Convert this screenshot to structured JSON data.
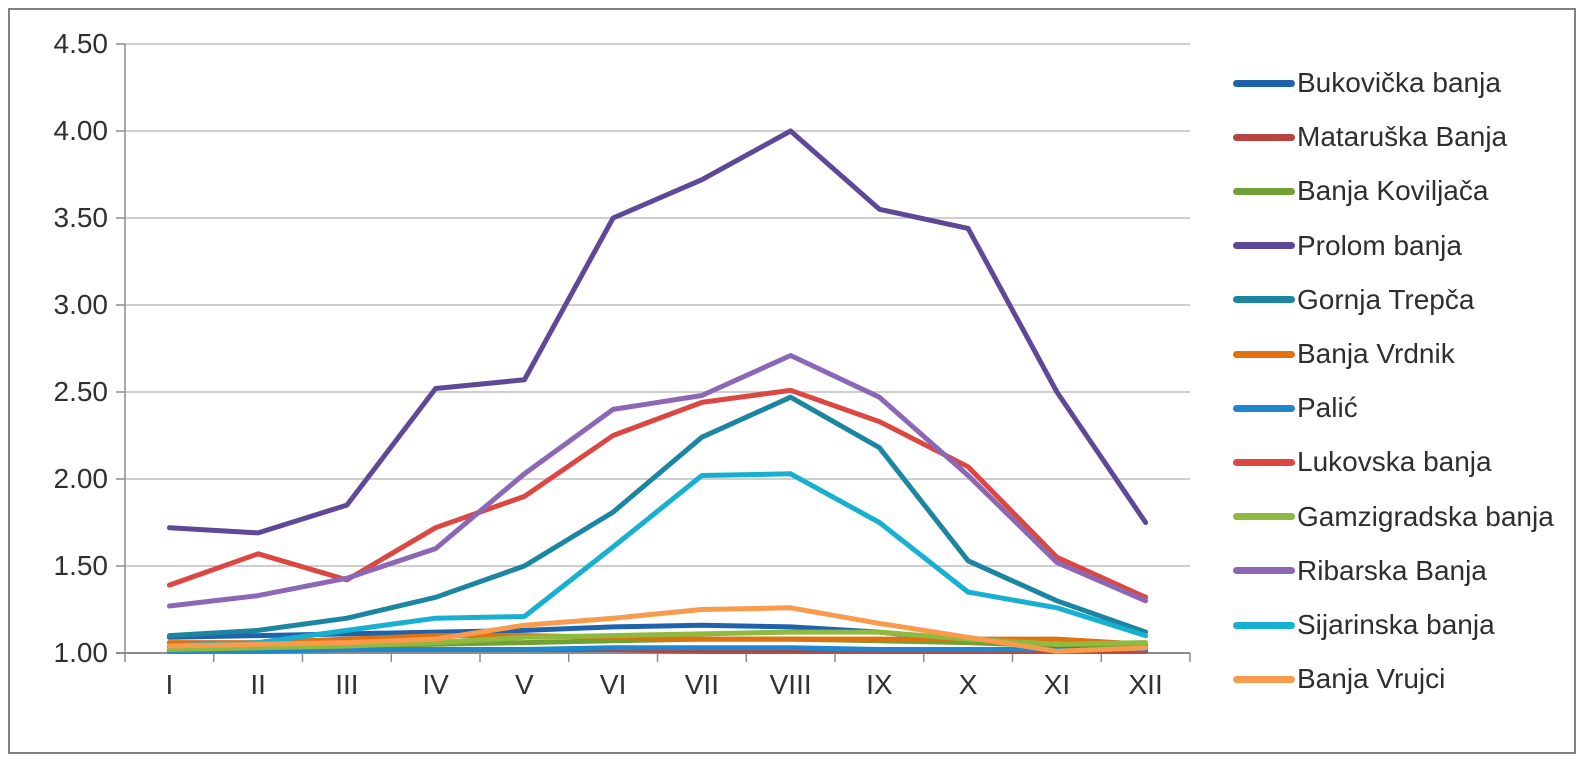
{
  "chart_data": {
    "type": "line",
    "categories": [
      "I",
      "II",
      "III",
      "IV",
      "V",
      "VI",
      "VII",
      "VIII",
      "IX",
      "X",
      "XI",
      "XII"
    ],
    "xlabel": "",
    "ylabel": "",
    "y_axis": {
      "min": 1.0,
      "max": 4.5,
      "step": 0.5,
      "tick_labels_top_to_bottom": [
        "4.50",
        "4.00",
        "3.50",
        "3.00",
        "2.50",
        "2.00",
        "1.50",
        "1.00"
      ]
    },
    "grid": "horizontal",
    "legend_position": "right",
    "series": [
      {
        "name": "Bukovička banja",
        "color": "#1E63AC",
        "values": [
          1.09,
          1.1,
          1.11,
          1.12,
          1.13,
          1.15,
          1.16,
          1.15,
          1.12,
          1.07,
          1.04,
          1.04
        ]
      },
      {
        "name": "Mataruška Banja",
        "color": "#B8433F",
        "values": [
          1.02,
          1.02,
          1.02,
          1.02,
          1.02,
          1.02,
          1.01,
          1.01,
          1.01,
          1.01,
          1.01,
          1.01
        ]
      },
      {
        "name": "Banja Koviljača",
        "color": "#71A033",
        "values": [
          1.03,
          1.03,
          1.04,
          1.05,
          1.06,
          1.07,
          1.08,
          1.08,
          1.07,
          1.06,
          1.04,
          1.04
        ]
      },
      {
        "name": "Prolom banja",
        "color": "#5F4897",
        "values": [
          1.72,
          1.69,
          1.85,
          2.52,
          2.57,
          3.5,
          3.72,
          4.0,
          3.55,
          3.44,
          2.5,
          1.75
        ]
      },
      {
        "name": "Gornja Trepča",
        "color": "#1C86A2",
        "values": [
          1.1,
          1.13,
          1.2,
          1.32,
          1.5,
          1.81,
          2.24,
          2.47,
          2.18,
          1.53,
          1.3,
          1.12
        ]
      },
      {
        "name": "Banja Vrdnik",
        "color": "#E2700F",
        "values": [
          1.06,
          1.06,
          1.08,
          1.1,
          1.1,
          1.09,
          1.08,
          1.08,
          1.08,
          1.08,
          1.08,
          1.05
        ]
      },
      {
        "name": "Palić",
        "color": "#1E87CF",
        "values": [
          1.01,
          1.01,
          1.02,
          1.02,
          1.02,
          1.03,
          1.03,
          1.03,
          1.02,
          1.02,
          1.02,
          1.02
        ]
      },
      {
        "name": "Lukovska banja",
        "color": "#DC4742",
        "values": [
          1.39,
          1.57,
          1.42,
          1.72,
          1.9,
          2.25,
          2.44,
          2.51,
          2.33,
          2.07,
          1.55,
          1.32
        ]
      },
      {
        "name": "Gamzigradska banja",
        "color": "#8EBB3F",
        "values": [
          1.02,
          1.03,
          1.04,
          1.06,
          1.09,
          1.1,
          1.11,
          1.12,
          1.12,
          1.08,
          1.05,
          1.06
        ]
      },
      {
        "name": "Ribarska Banja",
        "color": "#8B67B5",
        "values": [
          1.27,
          1.33,
          1.43,
          1.6,
          2.03,
          2.4,
          2.48,
          2.71,
          2.47,
          2.02,
          1.52,
          1.3
        ]
      },
      {
        "name": "Sijarinska banja",
        "color": "#17B0D0",
        "values": [
          1.04,
          1.06,
          1.13,
          1.2,
          1.21,
          1.61,
          2.02,
          2.03,
          1.75,
          1.35,
          1.26,
          1.1
        ]
      },
      {
        "name": "Banja Vrujci",
        "color": "#F89B4D",
        "values": [
          1.04,
          1.05,
          1.06,
          1.08,
          1.16,
          1.2,
          1.25,
          1.26,
          1.17,
          1.09,
          1.01,
          1.03
        ]
      }
    ]
  },
  "style_colors": {
    "gridline": "#BFBFBF",
    "axis": "#8C8C8C",
    "outer_border": "#808080",
    "label_text": "#303030"
  }
}
